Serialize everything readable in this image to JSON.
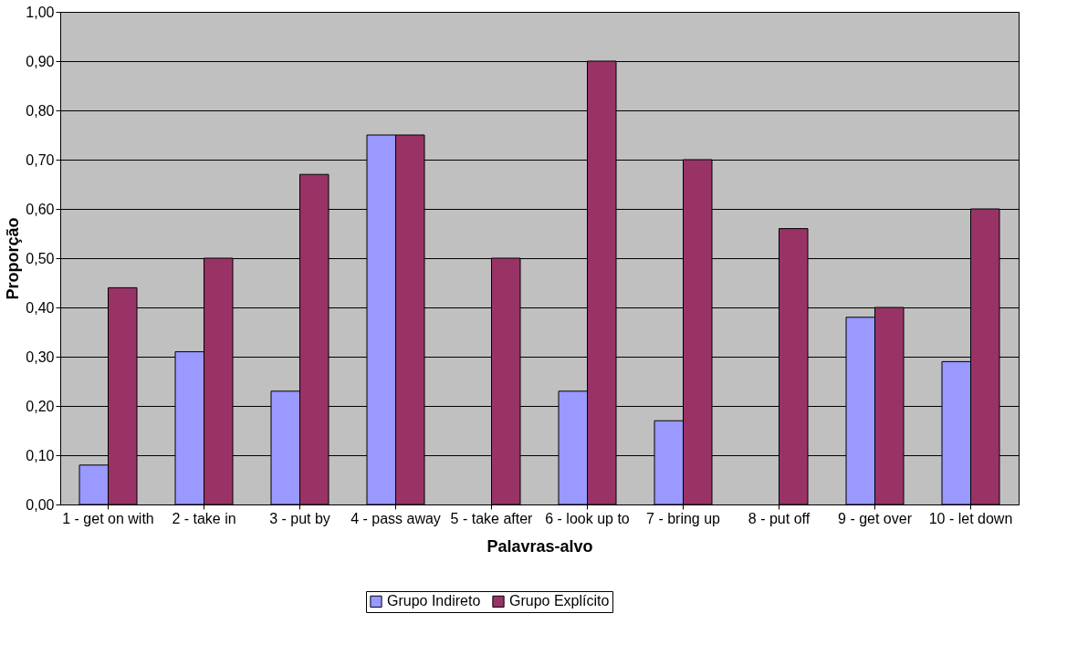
{
  "chart_data": {
    "type": "bar",
    "xlabel": "Palavras-alvo",
    "ylabel": "Proporção",
    "categories": [
      "1 - get on with",
      "2 - take in",
      "3 - put by",
      "4 - pass away",
      "5 - take after",
      "6 - look up to",
      "7 - bring up",
      "8 - put off",
      "9 - get over",
      "10 - let down"
    ],
    "series": [
      {
        "name": "Grupo Indireto",
        "color": "#9999ff",
        "values": [
          0.08,
          0.31,
          0.23,
          0.75,
          0,
          0.23,
          0.17,
          0,
          0.38,
          0.29
        ]
      },
      {
        "name": "Grupo Explícito",
        "color": "#993366",
        "values": [
          0.44,
          0.5,
          0.67,
          0.75,
          0.5,
          0.9,
          0.7,
          0.56,
          0.4,
          0.6
        ]
      }
    ],
    "ylim": [
      0,
      1
    ],
    "yticks": [
      {
        "value": 0,
        "label": "0,00"
      },
      {
        "value": 0.1,
        "label": "0,10"
      },
      {
        "value": 0.2,
        "label": "0,20"
      },
      {
        "value": 0.3,
        "label": "0,30"
      },
      {
        "value": 0.4,
        "label": "0,40"
      },
      {
        "value": 0.5,
        "label": "0,50"
      },
      {
        "value": 0.6,
        "label": "0,60"
      },
      {
        "value": 0.7,
        "label": "0,70"
      },
      {
        "value": 0.8,
        "label": "0,80"
      },
      {
        "value": 0.9,
        "label": "0,90"
      },
      {
        "value": 1,
        "label": "1,00"
      }
    ],
    "grid": "y",
    "legend": "bottom"
  }
}
